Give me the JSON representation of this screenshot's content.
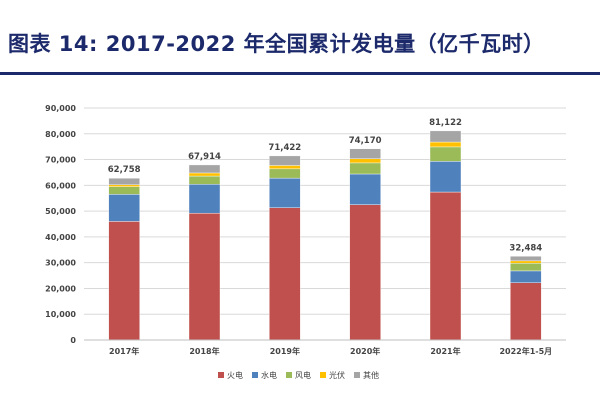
{
  "title": "图表 14: 2017-2022 年全国累计发电量（亿千瓦时）",
  "chart_data": {
    "type": "bar",
    "stacked": true,
    "categories": [
      "2017年",
      "2018年",
      "2019年",
      "2020年",
      "2021年",
      "2022年1-5月"
    ],
    "series": [
      {
        "name": "火电",
        "color": "#c0504d",
        "values": [
          46000,
          49200,
          51300,
          52500,
          57400,
          22200
        ]
      },
      {
        "name": "水电",
        "color": "#4f81bd",
        "values": [
          10500,
          11200,
          11500,
          11900,
          11900,
          4600
        ]
      },
      {
        "name": "风电",
        "color": "#9bbb59",
        "values": [
          3000,
          3200,
          3600,
          4300,
          5600,
          3000
        ]
      },
      {
        "name": "光伏",
        "color": "#ffc000",
        "values": [
          700,
          1200,
          1300,
          1600,
          1900,
          900
        ]
      },
      {
        "name": "其他",
        "color": "#a5a5a5",
        "values": [
          2558,
          3114,
          3722,
          3870,
          4322,
          1784
        ]
      }
    ],
    "totals": [
      "62,758",
      "67,914",
      "71,422",
      "74,170",
      "81,122",
      "32,484"
    ],
    "yticks": [
      "0",
      "10,000",
      "20,000",
      "30,000",
      "40,000",
      "50,000",
      "60,000",
      "70,000",
      "80,000",
      "90,000"
    ],
    "ylim": [
      0,
      90000
    ],
    "grid": true,
    "legend": "bottom"
  }
}
